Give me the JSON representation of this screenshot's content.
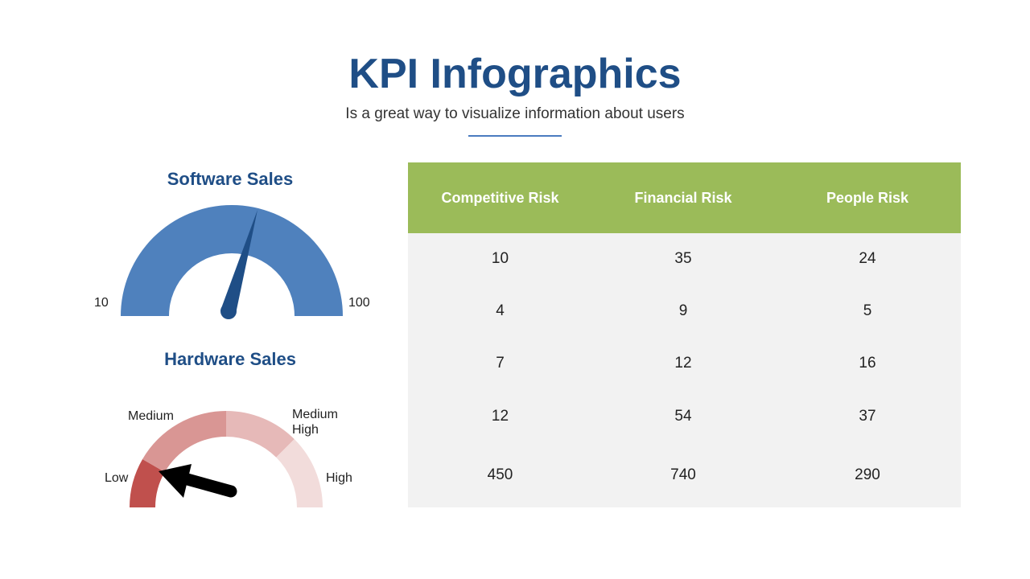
{
  "header": {
    "title": "KPI Infographics",
    "subtitle": "Is a great way to visualize information about users"
  },
  "software_gauge": {
    "title": "Software Sales",
    "min_label": "10",
    "max_label": "100",
    "color": "#4f81bd",
    "needle_color": "#1f4e86"
  },
  "hardware_gauge": {
    "title": "Hardware Sales",
    "segments": [
      {
        "label": "Low",
        "color": "#c0504d"
      },
      {
        "label": "Medium",
        "color": "#d99694"
      },
      {
        "label": "Medium High",
        "color": "#e6b9b8"
      },
      {
        "label": "High",
        "color": "#f2dcdb"
      }
    ],
    "label_low": "Low",
    "label_medium": "Medium",
    "label_medium_high_1": "Medium",
    "label_medium_high_2": "High",
    "label_high": "High",
    "arrow_color": "#000000",
    "selected": "Low"
  },
  "table": {
    "header_color": "#9bbb59",
    "columns": [
      "Competitive Risk",
      "Financial Risk",
      "People Risk"
    ],
    "rows": [
      [
        "10",
        "35",
        "24"
      ],
      [
        "4",
        "9",
        "5"
      ],
      [
        "7",
        "12",
        "16"
      ],
      [
        "12",
        "54",
        "37"
      ],
      [
        "450",
        "740",
        "290"
      ]
    ]
  }
}
